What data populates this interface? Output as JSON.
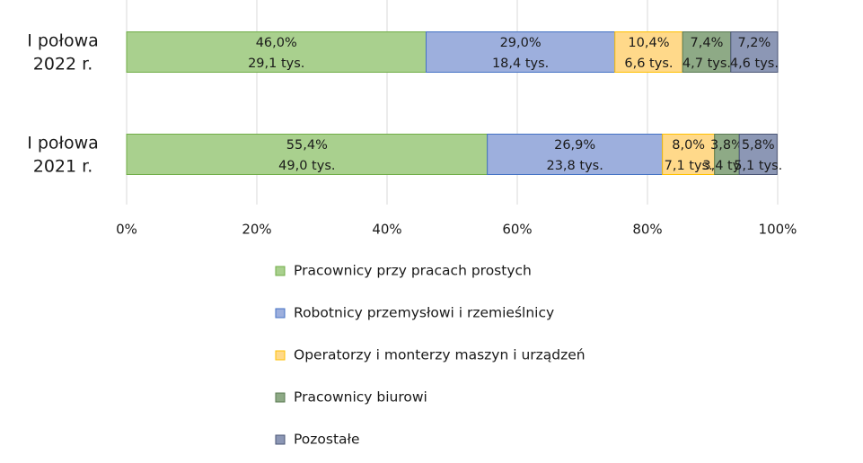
{
  "chart_data": {
    "type": "bar",
    "orientation": "horizontal",
    "stacked": "percent",
    "title": "",
    "xlabel": "",
    "ylabel": "",
    "xlim": [
      0,
      100
    ],
    "x_ticks": [
      "0%",
      "20%",
      "40%",
      "60%",
      "80%",
      "100%"
    ],
    "grid": "vertical",
    "legend_position": "bottom",
    "categories": [
      {
        "line1": "I połowa",
        "line2": "2022 r."
      },
      {
        "line1": "I połowa",
        "line2": "2021 r."
      }
    ],
    "series": [
      {
        "name": "Pracownicy przy pracach prostych",
        "color": "#a9d08e",
        "edge": "#70ad47",
        "values": [
          46.0,
          55.4
        ],
        "pct_labels": [
          "46,0%",
          "55,4%"
        ],
        "abs_labels": [
          "29,1 tys.",
          "49,0 tys."
        ]
      },
      {
        "name": "Robotnicy przemysłowi i rzemieślnicy",
        "color": "#9dafdd",
        "edge": "#4472c4",
        "values": [
          29.0,
          26.9
        ],
        "pct_labels": [
          "29,0%",
          "26,9%"
        ],
        "abs_labels": [
          "18,4 tys.",
          "23,8 tys."
        ]
      },
      {
        "name": "Operatorzy i monterzy maszyn i urządzeń",
        "color": "#ffd98a",
        "edge": "#ffc000",
        "values": [
          10.4,
          8.0
        ],
        "pct_labels": [
          "10,4%",
          "8,0%"
        ],
        "abs_labels": [
          "6,6 tys.",
          "7,1 tys."
        ]
      },
      {
        "name": "Pracownicy biurowi",
        "color": "#8eaa86",
        "edge": "#5a7a52",
        "values": [
          7.4,
          3.8
        ],
        "pct_labels": [
          "7,4%",
          "3,8%"
        ],
        "abs_labels": [
          "4,7 tys.",
          "3,4 tys."
        ]
      },
      {
        "name": "Pozostałe",
        "color": "#8c97b5",
        "edge": "#4a5575",
        "values": [
          7.2,
          5.8
        ],
        "pct_labels": [
          "7,2%",
          "5,8%"
        ],
        "abs_labels": [
          "4,6 tys.",
          "5,1 tys."
        ]
      }
    ]
  }
}
